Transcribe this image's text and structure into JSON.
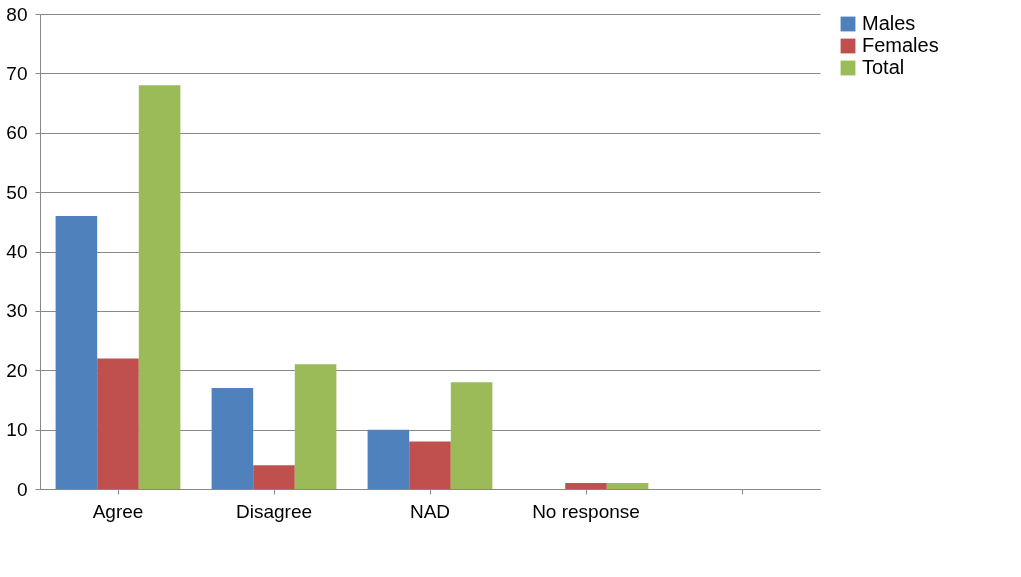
{
  "chart_data": {
    "type": "bar",
    "categories": [
      "Agree",
      "Disagree",
      "NAD",
      "No response",
      null
    ],
    "series": [
      {
        "name": "Males",
        "color": "#4f81bd",
        "values": [
          46,
          17,
          10,
          0,
          null
        ]
      },
      {
        "name": "Females",
        "color": "#c0504d",
        "values": [
          22,
          4,
          8,
          1,
          null
        ]
      },
      {
        "name": "Total",
        "color": "#9bbb59",
        "values": [
          68,
          21,
          18,
          1,
          null
        ]
      }
    ],
    "ylim": [
      0,
      80
    ],
    "yticks": [
      0,
      10,
      20,
      30,
      40,
      50,
      60,
      70,
      80
    ],
    "grid": "y",
    "legend": "right"
  }
}
